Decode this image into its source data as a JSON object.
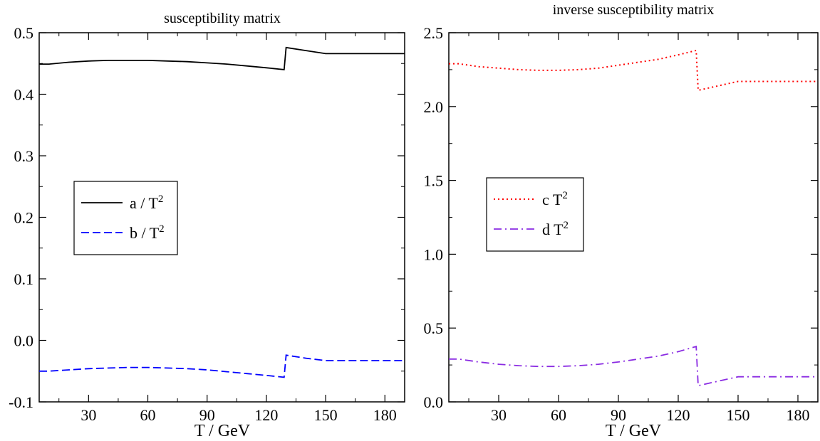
{
  "chart_data": [
    {
      "type": "line",
      "title": "susceptibility matrix",
      "xlabel": "T / GeV",
      "ylabel": "",
      "xlim": [
        5,
        190
      ],
      "ylim": [
        -0.1,
        0.5
      ],
      "xticks": [
        30,
        60,
        90,
        120,
        150,
        180
      ],
      "xtick_labels": [
        "30",
        "60",
        "90",
        "120",
        "150",
        "180"
      ],
      "yticks": [
        -0.1,
        0.0,
        0.1,
        0.2,
        0.3,
        0.4,
        0.5
      ],
      "ytick_labels": [
        "-0.1",
        "0.0",
        "0.1",
        "0.2",
        "0.3",
        "0.4",
        "0.5"
      ],
      "grid": false,
      "legend_position": "center-left",
      "series": [
        {
          "name": "a / T",
          "exponent": "2",
          "color": "#000000",
          "style": "solid",
          "x": [
            5,
            10,
            20,
            30,
            40,
            50,
            60,
            70,
            80,
            90,
            100,
            110,
            120,
            129,
            130,
            140,
            150,
            160,
            170,
            180,
            190
          ],
          "y": [
            0.449,
            0.449,
            0.452,
            0.454,
            0.455,
            0.455,
            0.455,
            0.454,
            0.453,
            0.451,
            0.449,
            0.446,
            0.443,
            0.44,
            0.476,
            0.471,
            0.466,
            0.466,
            0.466,
            0.466,
            0.466
          ]
        },
        {
          "name": "b / T",
          "exponent": "2",
          "color": "#0000ff",
          "style": "dashed",
          "x": [
            5,
            10,
            20,
            30,
            40,
            50,
            60,
            70,
            80,
            90,
            100,
            110,
            120,
            129,
            130,
            140,
            150,
            160,
            170,
            180,
            190
          ],
          "y": [
            -0.05,
            -0.05,
            -0.048,
            -0.046,
            -0.045,
            -0.044,
            -0.044,
            -0.045,
            -0.046,
            -0.048,
            -0.051,
            -0.054,
            -0.057,
            -0.06,
            -0.024,
            -0.029,
            -0.033,
            -0.033,
            -0.033,
            -0.033,
            -0.033
          ]
        }
      ]
    },
    {
      "type": "line",
      "title": "inverse susceptibility matrix",
      "xlabel": "T / GeV",
      "ylabel": "",
      "xlim": [
        5,
        190
      ],
      "ylim": [
        0.0,
        2.5
      ],
      "xticks": [
        30,
        60,
        90,
        120,
        150,
        180
      ],
      "xtick_labels": [
        "30",
        "60",
        "90",
        "120",
        "150",
        "180"
      ],
      "yticks": [
        0.0,
        0.5,
        1.0,
        1.5,
        2.0,
        2.5
      ],
      "ytick_labels": [
        "0.0",
        "0.5",
        "1.0",
        "1.5",
        "2.0",
        "2.5"
      ],
      "grid": false,
      "legend_position": "center-left",
      "series": [
        {
          "name": "c T",
          "exponent": "2",
          "color": "#ff0000",
          "style": "dotted",
          "x": [
            5,
            10,
            20,
            30,
            40,
            50,
            60,
            70,
            80,
            90,
            100,
            110,
            120,
            129,
            130,
            140,
            150,
            160,
            170,
            180,
            190
          ],
          "y": [
            2.29,
            2.29,
            2.27,
            2.26,
            2.25,
            2.245,
            2.245,
            2.25,
            2.26,
            2.28,
            2.3,
            2.32,
            2.35,
            2.38,
            2.11,
            2.14,
            2.17,
            2.17,
            2.17,
            2.17,
            2.17
          ]
        },
        {
          "name": "d T",
          "exponent": "2",
          "color": "#8a2be2",
          "style": "dashdot",
          "x": [
            5,
            10,
            20,
            30,
            40,
            50,
            60,
            70,
            80,
            90,
            100,
            110,
            120,
            129,
            130,
            140,
            150,
            160,
            170,
            180,
            190
          ],
          "y": [
            0.29,
            0.29,
            0.27,
            0.255,
            0.245,
            0.24,
            0.24,
            0.245,
            0.255,
            0.27,
            0.29,
            0.31,
            0.34,
            0.375,
            0.11,
            0.14,
            0.17,
            0.17,
            0.17,
            0.17,
            0.17
          ]
        }
      ]
    }
  ]
}
